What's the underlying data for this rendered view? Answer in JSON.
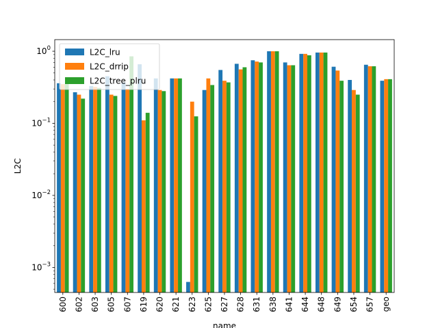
{
  "chart_data": {
    "type": "bar",
    "xlabel": "name",
    "ylabel": "L2C",
    "yscale": "log",
    "ylim": [
      0.00045,
      1.45
    ],
    "y_tick_labels": [
      {
        "value": 0.001,
        "base": "10",
        "exp": "−3"
      },
      {
        "value": 0.01,
        "base": "10",
        "exp": "−2"
      },
      {
        "value": 0.1,
        "base": "10",
        "exp": "−1"
      },
      {
        "value": 1,
        "base": "10",
        "exp": "0"
      }
    ],
    "grid": false,
    "legend_position": "top-left",
    "categories": [
      "600",
      "602",
      "603",
      "605",
      "607",
      "619",
      "620",
      "621",
      "623",
      "625",
      "627",
      "628",
      "631",
      "638",
      "641",
      "644",
      "648",
      "649",
      "654",
      "657",
      "geo"
    ],
    "series": [
      {
        "name": "L2C_lru",
        "color": "#1f77b4",
        "values": [
          0.36,
          0.27,
          0.33,
          0.45,
          0.37,
          0.66,
          0.42,
          0.42,
          0.00063,
          0.29,
          0.55,
          0.67,
          0.75,
          1.0,
          0.7,
          0.92,
          0.96,
          0.61,
          0.4,
          0.65,
          0.39
        ]
      },
      {
        "name": "L2C_drrip",
        "color": "#ff7f0e",
        "values": [
          0.35,
          0.25,
          0.32,
          0.25,
          0.3,
          0.11,
          0.29,
          0.42,
          0.2,
          0.42,
          0.39,
          0.56,
          0.72,
          1.0,
          0.64,
          0.92,
          0.96,
          0.54,
          0.29,
          0.62,
          0.41
        ]
      },
      {
        "name": "L2C_tree_plru",
        "color": "#2ca02c",
        "values": [
          0.35,
          0.22,
          0.31,
          0.24,
          0.85,
          0.14,
          0.28,
          0.42,
          0.125,
          0.34,
          0.37,
          0.6,
          0.7,
          1.0,
          0.64,
          0.88,
          0.96,
          0.39,
          0.25,
          0.62,
          0.41
        ]
      }
    ]
  }
}
